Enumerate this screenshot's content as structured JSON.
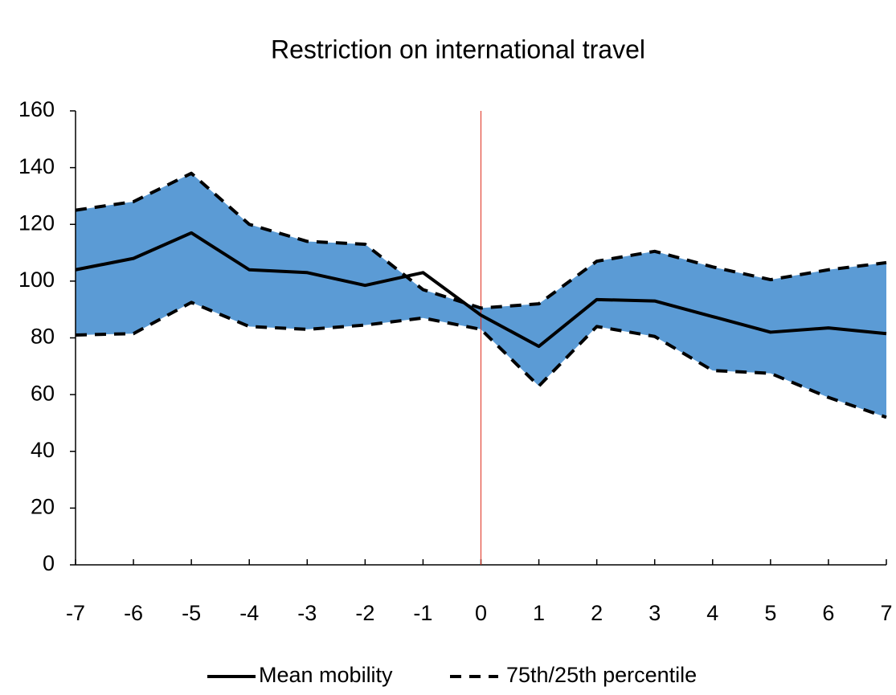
{
  "chart_data": {
    "type": "line",
    "title": "Restriction on international travel",
    "x": [
      -7,
      -6,
      -5,
      -4,
      -3,
      -2,
      -1,
      0,
      1,
      2,
      3,
      4,
      5,
      6,
      7
    ],
    "series": [
      {
        "name": "Mean mobility",
        "color": "#000000",
        "values": [
          104,
          108,
          117,
          104,
          103,
          98.5,
          103,
          88,
          77,
          93.5,
          93,
          87.5,
          82,
          83.5,
          81.5
        ]
      }
    ],
    "band": {
      "name": "75th/25th percentile",
      "color": "#000000",
      "fill": "#5b9bd5",
      "upper": [
        125,
        128,
        138,
        120,
        114,
        113,
        97,
        90.5,
        92,
        107,
        110.5,
        105,
        100.5,
        104,
        106.5
      ],
      "lower": [
        81,
        81.5,
        92.5,
        84,
        83,
        84.5,
        87,
        83,
        63,
        84,
        80.5,
        68.5,
        67.5,
        59,
        52
      ]
    },
    "event_x": 0,
    "event_color": "#e03020",
    "xlim": [
      -7,
      7
    ],
    "xticks": [
      -7,
      -6,
      -5,
      -4,
      -3,
      -2,
      -1,
      0,
      1,
      2,
      3,
      4,
      5,
      6,
      7
    ],
    "ylim": [
      0,
      160
    ],
    "yticks": [
      0,
      20,
      40,
      60,
      80,
      100,
      120,
      140,
      160
    ],
    "grid": false,
    "legend": "bottom"
  }
}
